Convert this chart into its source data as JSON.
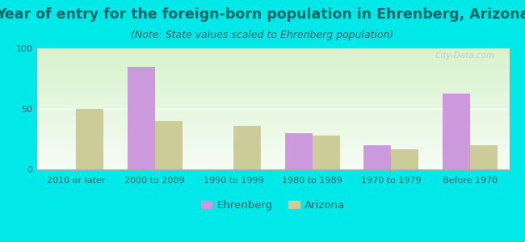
{
  "title": "Year of entry for the foreign-born population in Ehrenberg, Arizona",
  "subtitle": "(Note: State values scaled to Ehrenberg population)",
  "categories": [
    "2010 or later",
    "2000 to 2009",
    "1990 to 1999",
    "1980 to 1989",
    "1970 to 1979",
    "Before 1970"
  ],
  "ehrenberg_values": [
    0,
    85,
    0,
    30,
    20,
    63
  ],
  "arizona_values": [
    50,
    40,
    36,
    28,
    17,
    20
  ],
  "ehrenberg_color": "#cc99dd",
  "arizona_color": "#cccc99",
  "background_outer": "#00e8e8",
  "ylim": [
    0,
    100
  ],
  "yticks": [
    0,
    50,
    100
  ],
  "bar_width": 0.35,
  "legend_labels": [
    "Ehrenberg",
    "Arizona"
  ],
  "watermark": "City-Data.com",
  "title_fontsize": 12.5,
  "subtitle_fontsize": 9,
  "tick_fontsize": 8,
  "legend_fontsize": 9.5,
  "title_color": "#006666",
  "subtitle_color": "#336666",
  "tick_color": "#336666"
}
